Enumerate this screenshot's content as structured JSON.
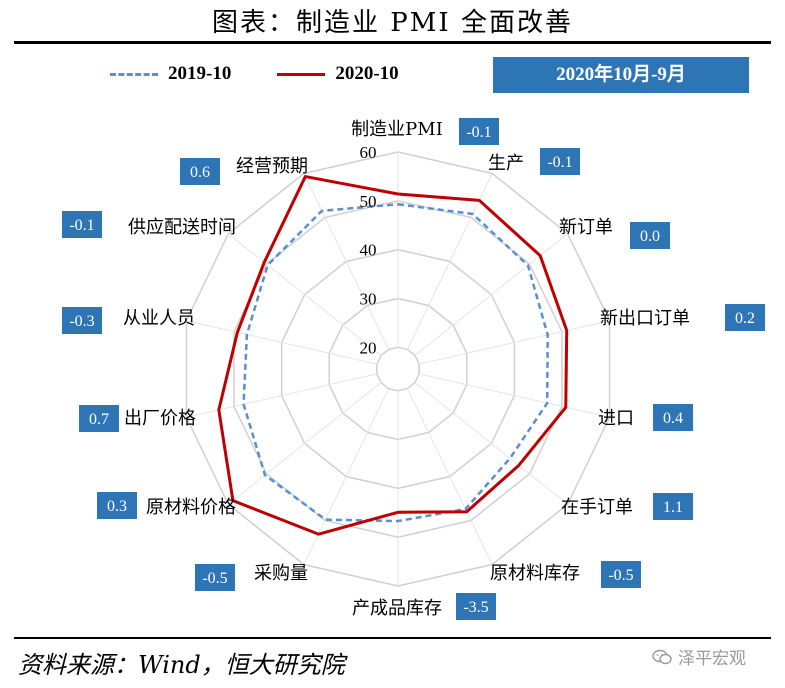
{
  "title": "图表：制造业 PMI 全面改善",
  "legend": {
    "series_a": "2019-10",
    "series_b": "2020-10"
  },
  "period_badge": "2020年10月-9月",
  "source": "资料来源：Wind，恒大研究院",
  "brand": {
    "text": "泽平宏观",
    "icon": "wechat-icon"
  },
  "colors": {
    "series_2019": "#5b8fd0",
    "series_2020": "#c00000",
    "badge": "#2e75b6",
    "grid": "#d0d0d0"
  },
  "chart_data": {
    "type": "radar",
    "title": "制造业 PMI 全面改善",
    "rmin": 20,
    "rmax": 60,
    "ticks": [
      "20",
      "30",
      "40",
      "50",
      "60"
    ],
    "grid": true,
    "legend_position": "top-left",
    "categories": [
      "制造业PMI",
      "生产",
      "新订单",
      "新出口订单",
      "进口",
      "在手订单",
      "原材料库存",
      "产成品库存",
      "采购量",
      "原材料价格",
      "出厂价格",
      "从业人员",
      "供应配送时间",
      "经营预期"
    ],
    "series": [
      {
        "name": "2019-10",
        "values": [
          49.3,
          50.8,
          49.6,
          47.0,
          46.9,
          44.9,
          47.4,
          46.7,
          49.8,
          50.4,
          48.0,
          47.3,
          49.7,
          51.5
        ]
      },
      {
        "name": "2020-10",
        "values": [
          51.4,
          53.9,
          52.8,
          51.0,
          50.8,
          47.2,
          48.0,
          44.9,
          53.1,
          58.8,
          53.2,
          49.3,
          50.6,
          59.3
        ]
      }
    ],
    "change_labels": [
      "-0.1",
      "-0.1",
      "0.0",
      "0.2",
      "0.4",
      "1.1",
      "-0.5",
      "-3.5",
      "-0.5",
      "0.3",
      "0.7",
      "-0.3",
      "-0.1",
      "0.6"
    ]
  }
}
